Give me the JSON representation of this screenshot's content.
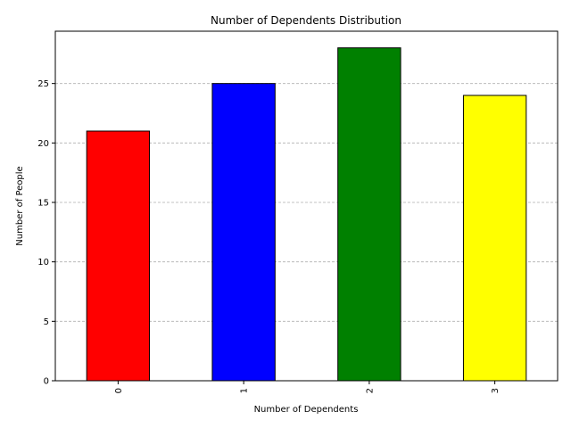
{
  "chart_data": {
    "type": "bar",
    "title": "Number of Dependents Distribution",
    "xlabel": "Number of Dependents",
    "ylabel": "Number of People",
    "categories": [
      "0",
      "1",
      "2",
      "3"
    ],
    "values": [
      21,
      25,
      28,
      24
    ],
    "colors": [
      "#ff0000",
      "#0000ff",
      "#008000",
      "#ffff00"
    ],
    "bar_edge_color": "#000000",
    "ylim": [
      0,
      29.4
    ],
    "yticks": [
      "0",
      "5",
      "10",
      "15",
      "20",
      "25"
    ],
    "grid": "y-dashed",
    "legend": "none"
  }
}
